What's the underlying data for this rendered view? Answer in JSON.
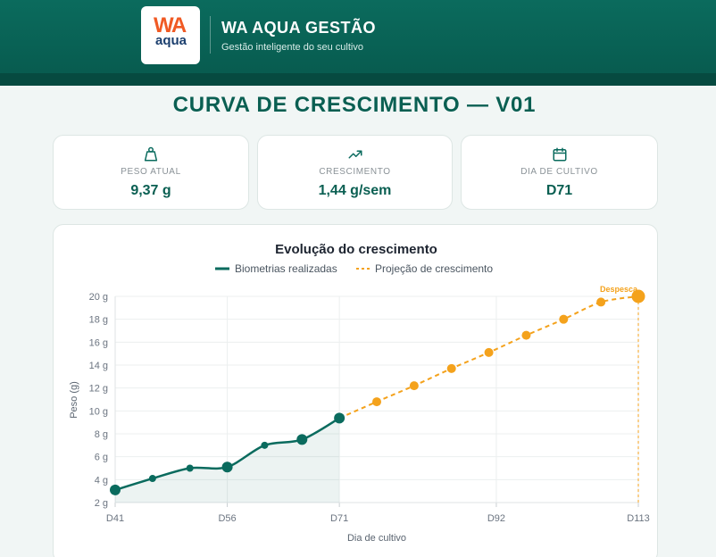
{
  "header": {
    "logo_main": "WA",
    "logo_sub": "aqua",
    "brand_name": "WA AQUA GESTÃO",
    "tagline": "Gestão inteligente do seu cultivo"
  },
  "page_title": "CURVA DE CRESCIMENTO — V01",
  "kpis": [
    {
      "icon": "weight-icon",
      "label": "PESO ATUAL",
      "value": "9,37 g"
    },
    {
      "icon": "trending-up-icon",
      "label": "CRESCIMENTO",
      "value": "1,44 g/sem"
    },
    {
      "icon": "calendar-icon",
      "label": "DIA DE CULTIVO",
      "value": "D71"
    }
  ],
  "colors": {
    "primary": "#0a6b5e",
    "projection": "#f4a21c",
    "muted_text": "#8a9297"
  },
  "chart_data": {
    "type": "line",
    "title": "Evolução do crescimento",
    "xlabel": "Dia de cultivo",
    "ylabel": "Peso (g)",
    "xlim": [
      41,
      111
    ],
    "ylim": [
      2,
      20
    ],
    "x_ticks": [
      41,
      56,
      71,
      92,
      113
    ],
    "x_tick_labels": [
      "D41",
      "D56",
      "D71",
      "D92",
      "D113"
    ],
    "y_ticks": [
      2,
      4,
      6,
      8,
      10,
      12,
      14,
      16,
      18,
      20
    ],
    "y_tick_labels": [
      "2 g",
      "4 g",
      "6 g",
      "8 g",
      "10 g",
      "12 g",
      "14 g",
      "16 g",
      "18 g",
      "20 g"
    ],
    "grid": true,
    "legend_position": "top-center",
    "series": [
      {
        "name": "Biometrias realizadas",
        "style": "solid",
        "area": true,
        "x": [
          41,
          46,
          51,
          56,
          61,
          66,
          71
        ],
        "y": [
          3.1,
          4.1,
          5.0,
          5.1,
          7.0,
          7.5,
          9.37
        ],
        "large_points": [
          true,
          false,
          false,
          true,
          false,
          true,
          true
        ]
      },
      {
        "name": "Projeção de crescimento",
        "style": "dashed",
        "x": [
          71,
          76,
          81,
          86,
          91,
          96,
          101,
          106,
          111
        ],
        "y": [
          9.37,
          10.8,
          12.2,
          13.7,
          15.1,
          16.6,
          18.0,
          19.5,
          20.0
        ],
        "end_marker": true
      }
    ],
    "annotation": {
      "text": "Despesca",
      "x": 111,
      "y": 20.0
    }
  }
}
